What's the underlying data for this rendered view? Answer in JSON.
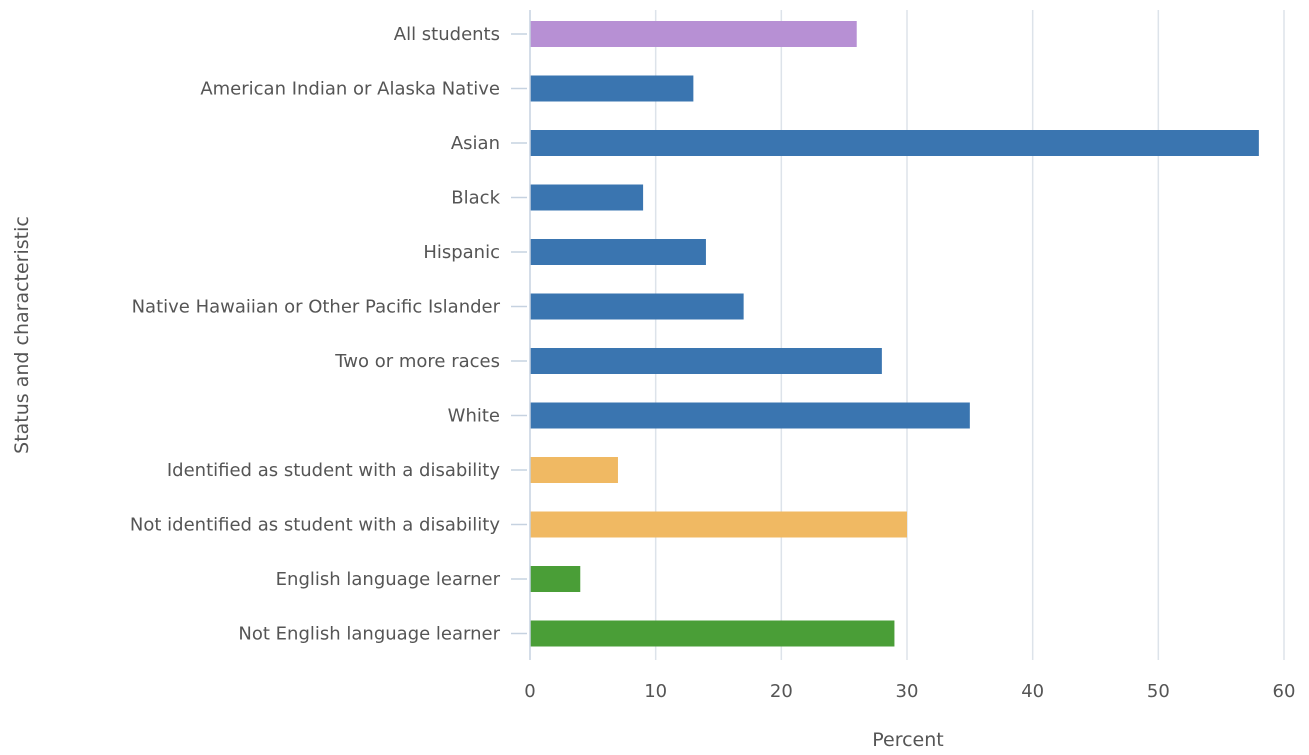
{
  "chart_data": {
    "type": "bar",
    "orientation": "horizontal",
    "title": "",
    "xlabel": "Percent",
    "ylabel": "Status and characteristic",
    "xlim": [
      0,
      60
    ],
    "x_ticks": [
      0,
      10,
      20,
      30,
      40,
      50,
      60
    ],
    "grid": "vertical",
    "legend": "none",
    "categories": [
      "All students",
      "American Indian or Alaska Native",
      "Asian",
      "Black",
      "Hispanic",
      "Native Hawaiian or Other Pacific Islander",
      "Two or more races",
      "White",
      "Identified as student with a disability",
      "Not identified as student with a disability",
      "English language learner",
      "Not English language learner"
    ],
    "values": [
      26,
      13,
      58,
      9,
      14,
      17,
      28,
      35,
      7,
      30,
      4,
      29
    ],
    "bar_colors": [
      "#b790d4",
      "#3a75b0",
      "#3a75b0",
      "#3a75b0",
      "#3a75b0",
      "#3a75b0",
      "#3a75b0",
      "#3a75b0",
      "#f0b963",
      "#f0b963",
      "#4a9e37",
      "#4a9e37"
    ],
    "colors": {
      "grid": "#dde3ea",
      "axis": "#c6d2e0",
      "text": "#555555"
    }
  }
}
